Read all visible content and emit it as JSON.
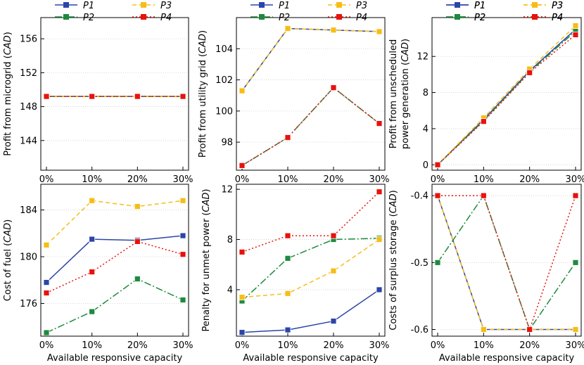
{
  "series_styles": [
    {
      "name": "P1",
      "color": "#2b45a8",
      "dash": ""
    },
    {
      "name": "P2",
      "color": "#1e8a3e",
      "dash": "10,3,2,3"
    },
    {
      "name": "P3",
      "color": "#f6bd16",
      "dash": "6,4"
    },
    {
      "name": "P4",
      "color": "#e8120c",
      "dash": "2,3"
    }
  ],
  "shared_xlabel": "Available responsive capacity",
  "chart_data": [
    {
      "type": "line",
      "panel": "top-left",
      "ylabel_parts": [
        "Profit from microgrid (",
        "CAD",
        ")"
      ],
      "ylabel_line2": null,
      "categories": [
        "0%",
        "10%",
        "20%",
        "30%"
      ],
      "ylim": [
        140.5,
        158.5
      ],
      "yticks": [
        144,
        148,
        152,
        156
      ],
      "legend": "top",
      "series": [
        {
          "name": "P1",
          "values": [
            149.2,
            149.2,
            149.2,
            149.2
          ]
        },
        {
          "name": "P2",
          "values": [
            149.2,
            149.2,
            149.2,
            149.2
          ]
        },
        {
          "name": "P3",
          "values": [
            149.2,
            149.2,
            149.2,
            149.2
          ]
        },
        {
          "name": "P4",
          "values": [
            149.2,
            149.2,
            149.2,
            149.2
          ]
        }
      ]
    },
    {
      "type": "line",
      "panel": "top-middle",
      "ylabel_parts": [
        "Profit from utility grid (",
        "CAD",
        ")"
      ],
      "ylabel_line2": null,
      "categories": [
        "0%",
        "10%",
        "20%",
        "30%"
      ],
      "ylim": [
        96.2,
        106.0
      ],
      "yticks": [
        98,
        100,
        102,
        104
      ],
      "legend": "top",
      "series": [
        {
          "name": "P1",
          "values": [
            101.3,
            105.3,
            105.2,
            105.1
          ]
        },
        {
          "name": "P2",
          "values": [
            96.5,
            98.3,
            101.5,
            99.2
          ]
        },
        {
          "name": "P3",
          "values": [
            101.3,
            105.3,
            105.2,
            105.1
          ]
        },
        {
          "name": "P4",
          "values": [
            96.5,
            98.3,
            101.5,
            99.2
          ]
        }
      ]
    },
    {
      "type": "line",
      "panel": "top-right",
      "ylabel_parts": [
        "Profit from unscheduled"
      ],
      "ylabel_line2": [
        "power generation (",
        "CAD",
        ")"
      ],
      "categories": [
        "0%",
        "10%",
        "20%",
        "30%"
      ],
      "ylim": [
        -0.6,
        16.3
      ],
      "yticks": [
        0,
        4,
        8,
        12
      ],
      "legend": "top",
      "series": [
        {
          "name": "P1",
          "values": [
            0,
            5.0,
            10.4,
            15.0
          ]
        },
        {
          "name": "P2",
          "values": [
            0,
            4.9,
            10.3,
            14.8
          ]
        },
        {
          "name": "P3",
          "values": [
            0,
            5.2,
            10.6,
            15.4
          ]
        },
        {
          "name": "P4",
          "values": [
            0,
            4.8,
            10.2,
            14.4
          ]
        }
      ]
    },
    {
      "type": "line",
      "panel": "bottom-left",
      "ylabel_parts": [
        "Cost of fuel (",
        "CAD",
        ")"
      ],
      "ylabel_line2": null,
      "categories": [
        "0%",
        "10%",
        "20%",
        "30%"
      ],
      "ylim": [
        173.2,
        186.2
      ],
      "yticks": [
        176,
        180,
        184
      ],
      "legend": "none",
      "series": [
        {
          "name": "P1",
          "values": [
            177.8,
            181.5,
            181.4,
            181.8
          ]
        },
        {
          "name": "P2",
          "values": [
            173.5,
            175.3,
            178.1,
            176.3
          ]
        },
        {
          "name": "P3",
          "values": [
            181.0,
            184.8,
            184.3,
            184.8
          ]
        },
        {
          "name": "P4",
          "values": [
            176.9,
            178.7,
            181.3,
            180.2
          ]
        }
      ]
    },
    {
      "type": "line",
      "panel": "bottom-middle",
      "ylabel_parts": [
        "Penalty for unmet power (",
        "CAD",
        ")"
      ],
      "ylabel_line2": null,
      "categories": [
        "0%",
        "10%",
        "20%",
        "30%"
      ],
      "ylim": [
        0.3,
        12.4
      ],
      "yticks": [
        4,
        8,
        12
      ],
      "legend": "none",
      "series": [
        {
          "name": "P1",
          "values": [
            0.6,
            0.8,
            1.5,
            4.0
          ]
        },
        {
          "name": "P2",
          "values": [
            3.1,
            6.5,
            8.0,
            8.1
          ]
        },
        {
          "name": "P3",
          "values": [
            3.4,
            3.7,
            5.5,
            8.0
          ]
        },
        {
          "name": "P4",
          "values": [
            7.0,
            8.3,
            8.3,
            11.8
          ]
        }
      ]
    },
    {
      "type": "line",
      "panel": "bottom-right",
      "ylabel_parts": [
        "Costs of surplus storage (",
        "CAD",
        ")"
      ],
      "ylabel_line2": null,
      "categories": [
        "0%",
        "10%",
        "20%",
        "30%"
      ],
      "ylim": [
        -0.61,
        -0.383
      ],
      "yticks": [
        -0.4,
        -0.5,
        -0.6
      ],
      "legend": "top",
      "series": [
        {
          "name": "P1",
          "values": [
            -0.4,
            -0.6,
            -0.6,
            -0.6
          ]
        },
        {
          "name": "P2",
          "values": [
            -0.5,
            -0.4,
            -0.6,
            -0.5
          ]
        },
        {
          "name": "P3",
          "values": [
            -0.4,
            -0.6,
            -0.6,
            -0.6
          ]
        },
        {
          "name": "P4",
          "values": [
            -0.4,
            -0.4,
            -0.6,
            -0.4
          ]
        }
      ]
    }
  ]
}
